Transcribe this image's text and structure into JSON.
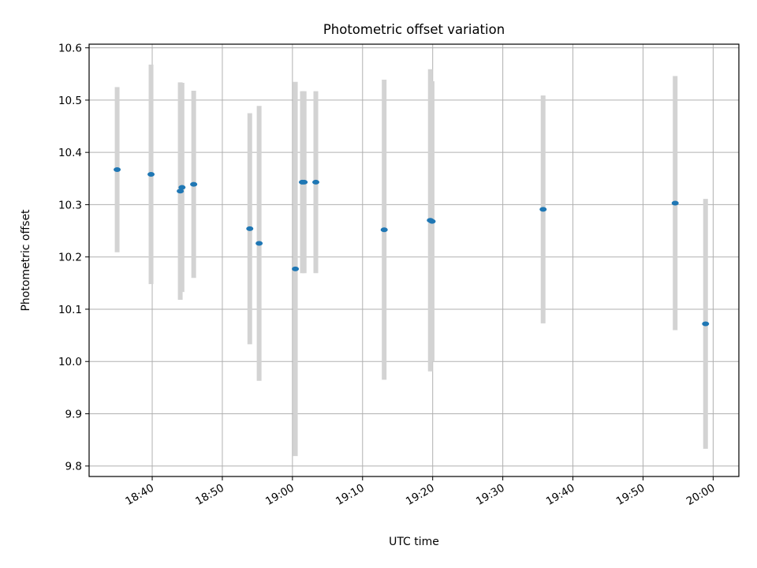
{
  "chart_data": {
    "type": "scatter",
    "title": "Photometric offset variation",
    "xlabel": "UTC time",
    "ylabel": "Photometric offset",
    "xlim": [
      "18:31:00",
      "20:03:40"
    ],
    "ylim": [
      9.78,
      10.607
    ],
    "x_ticks": [
      "18:40",
      "18:50",
      "19:00",
      "19:10",
      "19:20",
      "19:30",
      "19:40",
      "19:50",
      "20:00"
    ],
    "y_ticks": [
      "9.8",
      "9.9",
      "10.0",
      "10.1",
      "10.2",
      "10.3",
      "10.4",
      "10.5",
      "10.6"
    ],
    "grid": true,
    "series": [
      {
        "marker_color": "#1f77b4",
        "errorbar_color": "#d3d3d3",
        "points": [
          {
            "x": "18:35:00",
            "y": 10.367,
            "yerr": 0.158
          },
          {
            "x": "18:39:50",
            "y": 10.358,
            "yerr": 0.21
          },
          {
            "x": "18:44:00",
            "y": 10.326,
            "yerr": 0.208
          },
          {
            "x": "18:44:15",
            "y": 10.333,
            "yerr": 0.2
          },
          {
            "x": "18:45:55",
            "y": 10.339,
            "yerr": 0.179
          },
          {
            "x": "18:53:55",
            "y": 10.254,
            "yerr": 0.221
          },
          {
            "x": "18:55:15",
            "y": 10.226,
            "yerr": 0.263
          },
          {
            "x": "19:00:25",
            "y": 10.177,
            "yerr": 0.358
          },
          {
            "x": "19:01:25",
            "y": 10.343,
            "yerr": 0.174
          },
          {
            "x": "19:01:40",
            "y": 10.343,
            "yerr": 0.174
          },
          {
            "x": "19:03:20",
            "y": 10.343,
            "yerr": 0.174
          },
          {
            "x": "19:13:05",
            "y": 10.252,
            "yerr": 0.287
          },
          {
            "x": "19:19:40",
            "y": 10.27,
            "yerr": 0.289
          },
          {
            "x": "19:19:55",
            "y": 10.268,
            "yerr": 0.268
          },
          {
            "x": "19:35:45",
            "y": 10.291,
            "yerr": 0.218
          },
          {
            "x": "19:54:35",
            "y": 10.303,
            "yerr": 0.243
          },
          {
            "x": "19:58:55",
            "y": 10.072,
            "yerr": 0.239
          }
        ]
      }
    ]
  }
}
